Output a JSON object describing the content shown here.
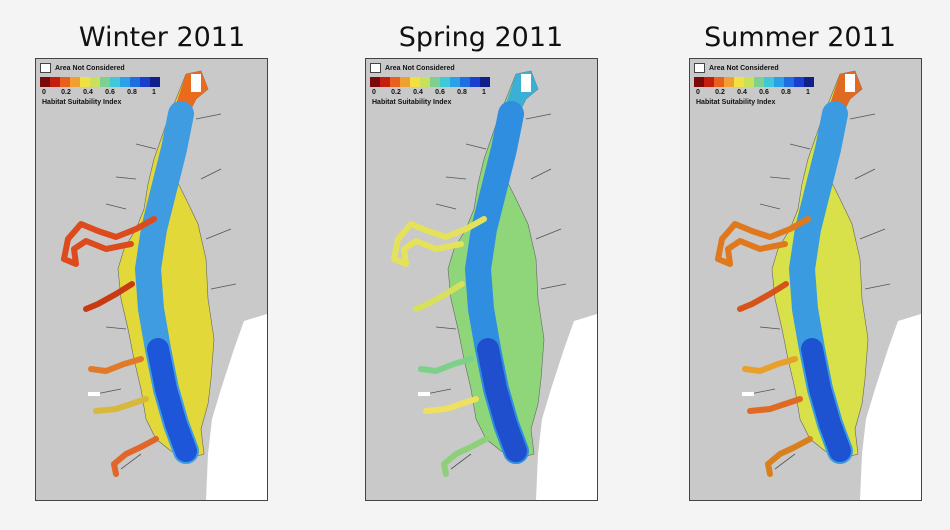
{
  "panels": [
    {
      "title": "Winter 2011",
      "legend": {
        "not_considered_label": "Area Not Considered",
        "ticks": [
          "0",
          "0.2",
          "0.4",
          "0.6",
          "0.8",
          "1"
        ],
        "title": "Habitat Suitability Index"
      },
      "palette": {
        "upper": "#ea6a1e",
        "mid": "#e2d83a",
        "main": "#3f9ce0",
        "deep": "#1d56d8"
      },
      "tributary_colors": [
        "#dd4a1c",
        "#c93a12",
        "#e07a2a",
        "#d8b83a",
        "#e0662a"
      ]
    },
    {
      "title": "Spring 2011",
      "legend": {
        "not_considered_label": "Area Not Considered",
        "ticks": [
          "0",
          "0.2",
          "0.4",
          "0.6",
          "0.8",
          "1"
        ],
        "title": "Habitat Suitability Index"
      },
      "palette": {
        "upper": "#3ab0d6",
        "mid": "#8fd67a",
        "main": "#2f8ee0",
        "deep": "#1f4fcc"
      },
      "tributary_colors": [
        "#e4e25a",
        "#d6e05a",
        "#7cd08a",
        "#f0e060",
        "#8ed07a"
      ]
    },
    {
      "title": "Summer 2011",
      "legend": {
        "not_considered_label": "Area Not Considered",
        "ticks": [
          "0",
          "0.2",
          "0.4",
          "0.6",
          "0.8",
          "1"
        ],
        "title": "Habitat Suitability Index"
      },
      "palette": {
        "upper": "#e06a22",
        "mid": "#d8e04a",
        "main": "#3a9be0",
        "deep": "#1d52d0"
      },
      "tributary_colors": [
        "#e0781e",
        "#d6541a",
        "#e8a02a",
        "#e06a22",
        "#d8801e"
      ]
    }
  ],
  "colors": {
    "land": "#c9c9c9",
    "ocean": "#ffffff",
    "scale": [
      "#7a0a0a",
      "#c41e10",
      "#e8601c",
      "#f0a030",
      "#f2e040",
      "#c8e05a",
      "#7ed090",
      "#3ec8d8",
      "#2aa0e8",
      "#1e6ee0",
      "#1a3fd0",
      "#10208a"
    ]
  }
}
